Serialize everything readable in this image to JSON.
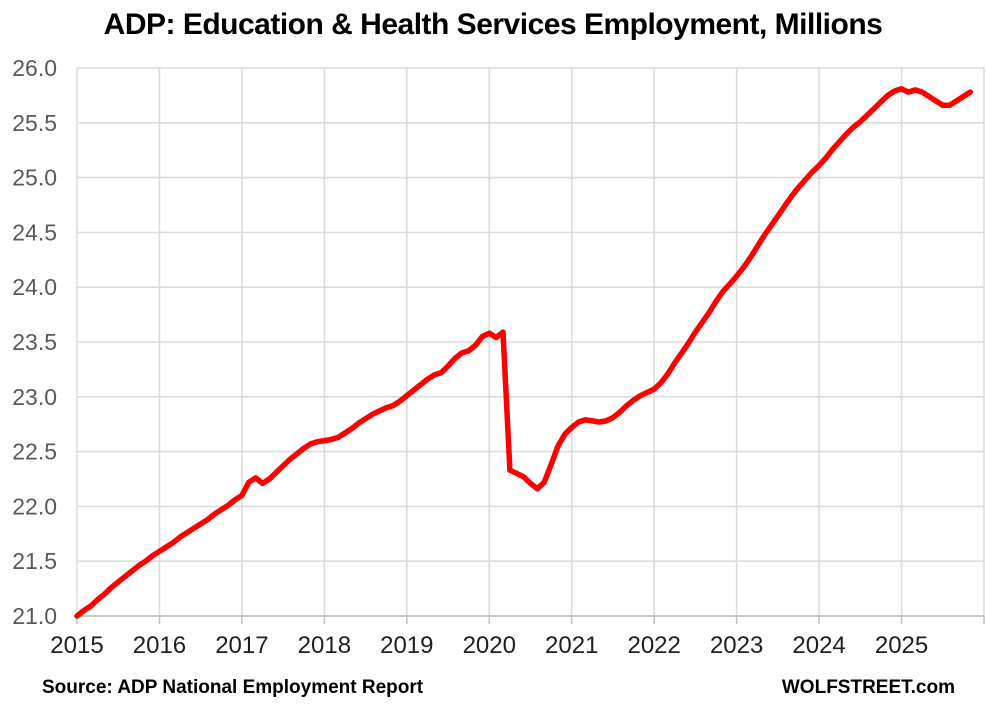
{
  "title": "ADP: Education & Health Services Employment, Millions",
  "footer": {
    "source": "Source: ADP National Employment Report",
    "brand": "WOLFSTREET.com"
  },
  "chart_data": {
    "type": "line",
    "title": "ADP: Education & Health Services Employment, Millions",
    "ylabel": "",
    "xlabel": "",
    "ylim": [
      21.0,
      26.0
    ],
    "xlim_years": [
      2015,
      2026
    ],
    "grid": true,
    "legend": "none",
    "frequency": "monthly",
    "start": "2015-01",
    "end": "2025-11",
    "x_tick_labels": [
      "2015",
      "2016",
      "2017",
      "2018",
      "2019",
      "2020",
      "2021",
      "2022",
      "2023",
      "2024",
      "2025"
    ],
    "y_tick_labels": [
      "26.0",
      "25.5",
      "25.0",
      "24.5",
      "24.0",
      "23.5",
      "23.0",
      "22.5",
      "22.0",
      "21.5",
      "21.0"
    ],
    "series": [
      {
        "name": "ADP Education & Health Services Employment, Millions",
        "values": [
          21.0,
          21.05,
          21.09,
          21.15,
          21.2,
          21.26,
          21.31,
          21.36,
          21.41,
          21.46,
          21.5,
          21.55,
          21.59,
          21.63,
          21.67,
          21.72,
          21.76,
          21.8,
          21.84,
          21.88,
          21.93,
          21.97,
          22.01,
          22.06,
          22.1,
          22.22,
          22.26,
          22.21,
          22.25,
          22.31,
          22.37,
          22.43,
          22.48,
          22.53,
          22.57,
          22.59,
          22.6,
          22.61,
          22.63,
          22.67,
          22.71,
          22.76,
          22.8,
          22.84,
          22.87,
          22.9,
          22.92,
          22.96,
          23.01,
          23.06,
          23.11,
          23.16,
          23.2,
          23.22,
          23.28,
          23.35,
          23.4,
          23.42,
          23.47,
          23.55,
          23.58,
          23.54,
          23.59,
          22.33,
          22.3,
          22.27,
          22.21,
          22.16,
          22.22,
          22.38,
          22.55,
          22.66,
          22.72,
          22.77,
          22.79,
          22.78,
          22.77,
          22.78,
          22.81,
          22.86,
          22.92,
          22.97,
          23.01,
          23.04,
          23.07,
          23.13,
          23.21,
          23.31,
          23.4,
          23.49,
          23.59,
          23.68,
          23.77,
          23.87,
          23.96,
          24.03,
          24.1,
          24.18,
          24.27,
          24.37,
          24.47,
          24.56,
          24.65,
          24.74,
          24.83,
          24.91,
          24.98,
          25.05,
          25.11,
          25.18,
          25.26,
          25.33,
          25.4,
          25.46,
          25.51,
          25.57,
          25.63,
          25.69,
          25.75,
          25.79,
          25.81,
          25.78,
          25.8,
          25.78,
          25.74,
          25.7,
          25.66,
          25.66,
          25.7,
          25.74,
          25.78
        ]
      }
    ],
    "colors": {
      "line": "#ff0000",
      "gridline": "#dcdcdc",
      "axis_line": "#c4c4c4",
      "y_tick_label": "#595959",
      "x_tick_label": "#1f1f1f",
      "title": "#000000",
      "background": "#ffffff"
    }
  }
}
